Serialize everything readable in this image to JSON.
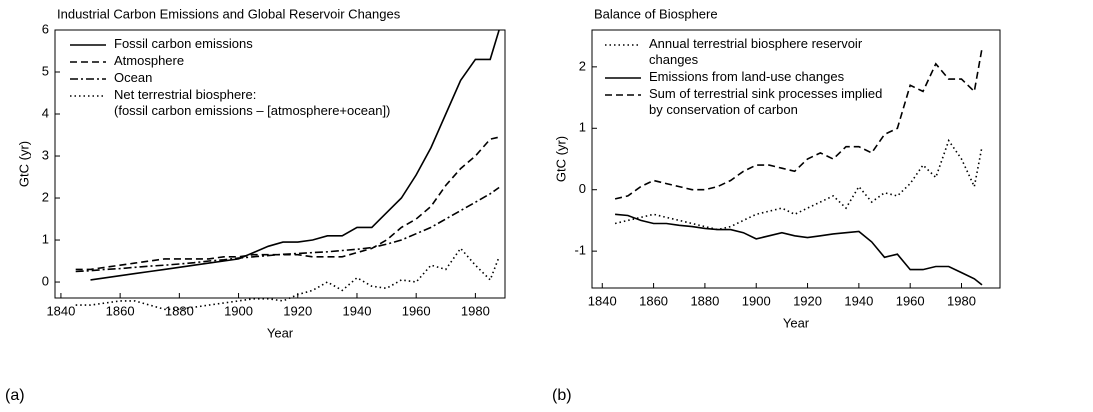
{
  "chart_data": [
    {
      "type": "line",
      "title": "Industrial Carbon Emissions and Global Reservoir Changes",
      "panel_label": "(a)",
      "xlabel": "Year",
      "ylabel": "GtC (yr)",
      "x": [
        1845,
        1850,
        1855,
        1860,
        1865,
        1870,
        1875,
        1880,
        1885,
        1890,
        1895,
        1900,
        1905,
        1910,
        1915,
        1920,
        1925,
        1930,
        1935,
        1940,
        1945,
        1950,
        1955,
        1960,
        1965,
        1970,
        1975,
        1980,
        1985,
        1988
      ],
      "xlim": [
        1838,
        1990
      ],
      "xticks": [
        1840,
        1860,
        1880,
        1900,
        1920,
        1940,
        1960,
        1980
      ],
      "ylim": [
        -0.38,
        6
      ],
      "yticks": [
        0,
        1,
        2,
        3,
        4,
        5,
        6
      ],
      "series": [
        {
          "name": "Fossil carbon emissions",
          "color": "#000000",
          "style": "solid",
          "values": [
            null,
            0.05,
            0.1,
            0.15,
            0.2,
            0.25,
            0.3,
            0.35,
            0.4,
            0.45,
            0.5,
            0.55,
            0.7,
            0.85,
            0.95,
            0.95,
            1.0,
            1.1,
            1.1,
            1.3,
            1.3,
            1.65,
            2.0,
            2.55,
            3.2,
            4.0,
            4.8,
            5.3,
            5.3,
            6.0
          ]
        },
        {
          "name": "Atmosphere",
          "color": "#000000",
          "style": "dashed",
          "values": [
            0.3,
            0.3,
            0.35,
            0.4,
            0.45,
            0.5,
            0.55,
            0.55,
            0.55,
            0.55,
            0.6,
            0.6,
            0.65,
            0.65,
            0.65,
            0.65,
            0.6,
            0.6,
            0.6,
            0.7,
            0.8,
            1.0,
            1.3,
            1.5,
            1.8,
            2.3,
            2.7,
            3.0,
            3.4,
            3.45
          ]
        },
        {
          "name": "Ocean",
          "color": "#000000",
          "style": "dashdot",
          "values": [
            0.25,
            0.27,
            0.3,
            0.32,
            0.35,
            0.38,
            0.4,
            0.43,
            0.46,
            0.5,
            0.53,
            0.57,
            0.6,
            0.63,
            0.66,
            0.68,
            0.7,
            0.72,
            0.75,
            0.78,
            0.82,
            0.9,
            1.0,
            1.15,
            1.3,
            1.5,
            1.7,
            1.9,
            2.1,
            2.25
          ]
        },
        {
          "name": "Net terrestrial biosphere:\n(fossil carbon emissions – [atmosphere+ocean])",
          "color": "#000000",
          "style": "dotted",
          "values": [
            -0.55,
            -0.55,
            -0.5,
            -0.45,
            -0.45,
            -0.55,
            -0.65,
            -0.65,
            -0.6,
            -0.55,
            -0.5,
            -0.45,
            -0.4,
            -0.4,
            -0.45,
            -0.3,
            -0.2,
            0.0,
            -0.2,
            0.1,
            -0.1,
            -0.15,
            0.05,
            0.0,
            0.4,
            0.3,
            0.8,
            0.4,
            0.05,
            0.6
          ]
        }
      ]
    },
    {
      "type": "line",
      "title": "Balance of Biosphere",
      "panel_label": "(b)",
      "xlabel": "Year",
      "ylabel": "GtC (yr)",
      "x": [
        1845,
        1850,
        1855,
        1860,
        1865,
        1870,
        1875,
        1880,
        1885,
        1890,
        1895,
        1900,
        1905,
        1910,
        1915,
        1920,
        1925,
        1930,
        1935,
        1940,
        1945,
        1950,
        1955,
        1960,
        1965,
        1970,
        1975,
        1980,
        1985,
        1988
      ],
      "xlim": [
        1836,
        1995
      ],
      "xticks": [
        1840,
        1860,
        1880,
        1900,
        1920,
        1940,
        1960,
        1980
      ],
      "ylim": [
        -1.6,
        2.6
      ],
      "yticks": [
        -1,
        0,
        1,
        2
      ],
      "series": [
        {
          "name": "Annual terrestrial biosphere reservoir\nchanges",
          "color": "#000000",
          "style": "dotted",
          "values": [
            -0.55,
            -0.5,
            -0.45,
            -0.4,
            -0.45,
            -0.5,
            -0.55,
            -0.6,
            -0.65,
            -0.6,
            -0.5,
            -0.4,
            -0.35,
            -0.3,
            -0.4,
            -0.3,
            -0.2,
            -0.1,
            -0.3,
            0.05,
            -0.2,
            -0.05,
            -0.1,
            0.1,
            0.4,
            0.2,
            0.8,
            0.5,
            0.05,
            0.7
          ]
        },
        {
          "name": "Emissions from land-use changes",
          "color": "#000000",
          "style": "solid",
          "values": [
            -0.4,
            -0.42,
            -0.5,
            -0.55,
            -0.55,
            -0.58,
            -0.6,
            -0.63,
            -0.65,
            -0.65,
            -0.7,
            -0.8,
            -0.75,
            -0.7,
            -0.75,
            -0.78,
            -0.75,
            -0.72,
            -0.7,
            -0.68,
            -0.85,
            -1.1,
            -1.05,
            -1.3,
            -1.3,
            -1.25,
            -1.25,
            -1.35,
            -1.45,
            -1.55
          ]
        },
        {
          "name": "Sum of terrestrial sink processes implied\nby conservation of carbon",
          "color": "#000000",
          "style": "dashed",
          "values": [
            -0.15,
            -0.1,
            0.05,
            0.15,
            0.1,
            0.05,
            0.0,
            0.0,
            0.05,
            0.15,
            0.3,
            0.4,
            0.4,
            0.35,
            0.3,
            0.5,
            0.6,
            0.5,
            0.7,
            0.7,
            0.6,
            0.9,
            1.0,
            1.7,
            1.6,
            2.05,
            1.8,
            1.8,
            1.6,
            2.3
          ]
        }
      ]
    }
  ]
}
